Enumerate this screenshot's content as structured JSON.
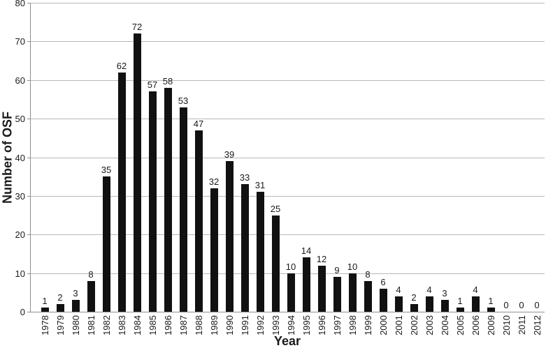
{
  "chart_data": {
    "type": "bar",
    "title": "",
    "xlabel": "Year",
    "ylabel": "Number of OSF",
    "categories": [
      "1978",
      "1979",
      "1980",
      "1981",
      "1982",
      "1983",
      "1984",
      "1985",
      "1986",
      "1987",
      "1988",
      "1989",
      "1990",
      "1991",
      "1992",
      "1993",
      "1994",
      "1995",
      "1996",
      "1997",
      "1998",
      "1999",
      "2000",
      "2001",
      "2002",
      "2003",
      "2004",
      "2005",
      "2006",
      "2009",
      "2010",
      "2011",
      "2012"
    ],
    "values": [
      1,
      2,
      3,
      8,
      35,
      62,
      72,
      57,
      58,
      53,
      47,
      32,
      39,
      33,
      31,
      25,
      10,
      14,
      12,
      9,
      10,
      8,
      6,
      4,
      2,
      4,
      3,
      1,
      4,
      1,
      0,
      0,
      0
    ],
    "ylim": [
      0,
      80
    ],
    "yticks": [
      0,
      10,
      20,
      30,
      40,
      50,
      60,
      70,
      80
    ],
    "grid": "horizontal",
    "legend": "none",
    "data_labels": true,
    "colors": {
      "bar": "#111111",
      "gridline": "#b8b8b8",
      "axis_line": "#8f8f8f",
      "text": "#1a1a1a"
    }
  }
}
